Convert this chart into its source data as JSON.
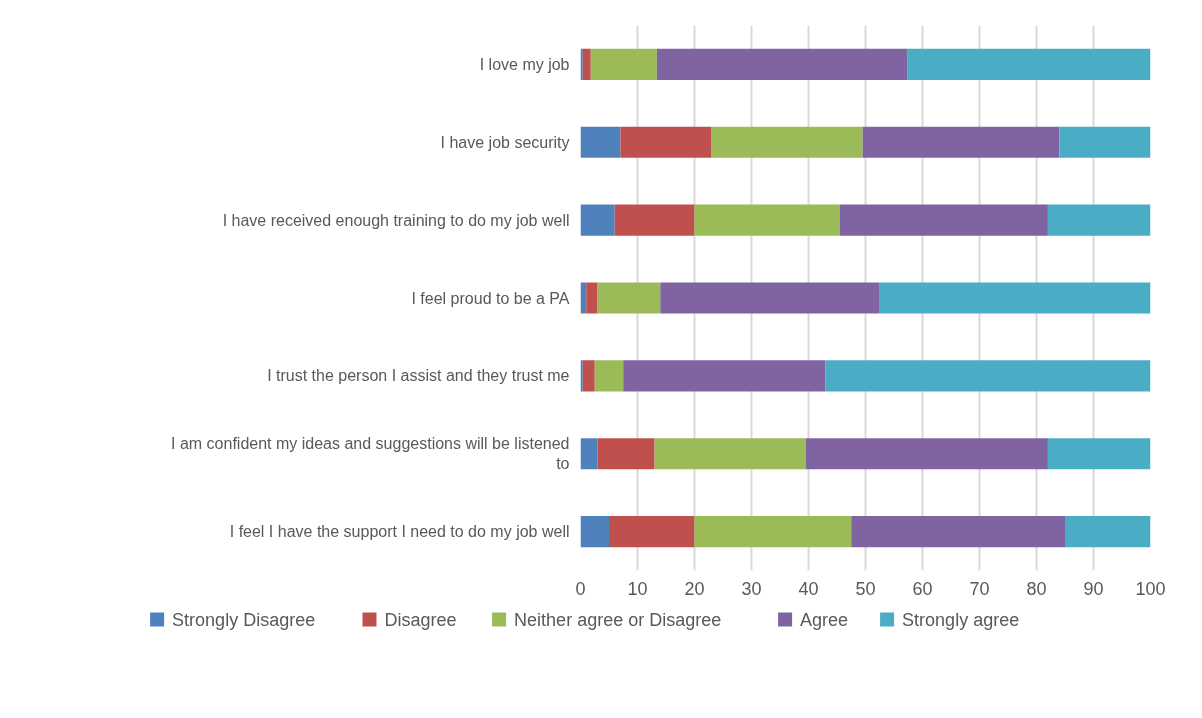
{
  "chart_data": {
    "type": "bar",
    "orientation": "horizontal",
    "stacked": true,
    "categories": [
      "I love my job",
      "I have job security",
      "I have received enough training to do my job well",
      "I feel proud to be a PA",
      "I trust the person I assist and they trust me",
      "I am confident my ideas and suggestions will be listened to",
      "I feel I have the support I need to do my job well"
    ],
    "series": [
      {
        "name": "Strongly Disagree",
        "color": "#4f81bd",
        "values": [
          0.4,
          7,
          6,
          1,
          0.4,
          3,
          5
        ]
      },
      {
        "name": "Disagree",
        "color": "#c0504d",
        "values": [
          1.4,
          16,
          14,
          2,
          2.1,
          10,
          15
        ]
      },
      {
        "name": "Neither agree or Disagree",
        "color": "#9bbb59",
        "values": [
          11.6,
          26.5,
          25.5,
          11,
          5,
          26.5,
          27.5
        ]
      },
      {
        "name": "Agree",
        "color": "#8064a2",
        "values": [
          44,
          34.5,
          36.5,
          38.5,
          35.5,
          42.5,
          37.5
        ]
      },
      {
        "name": "Strongly agree",
        "color": "#4bacc6",
        "values": [
          42.6,
          16,
          18,
          47.5,
          57,
          18,
          15
        ]
      }
    ],
    "xlim": [
      0,
      100
    ],
    "xticks": [
      0,
      10,
      20,
      30,
      40,
      50,
      60,
      70,
      80,
      90,
      100
    ],
    "grid": "x",
    "legend": "bottom"
  }
}
